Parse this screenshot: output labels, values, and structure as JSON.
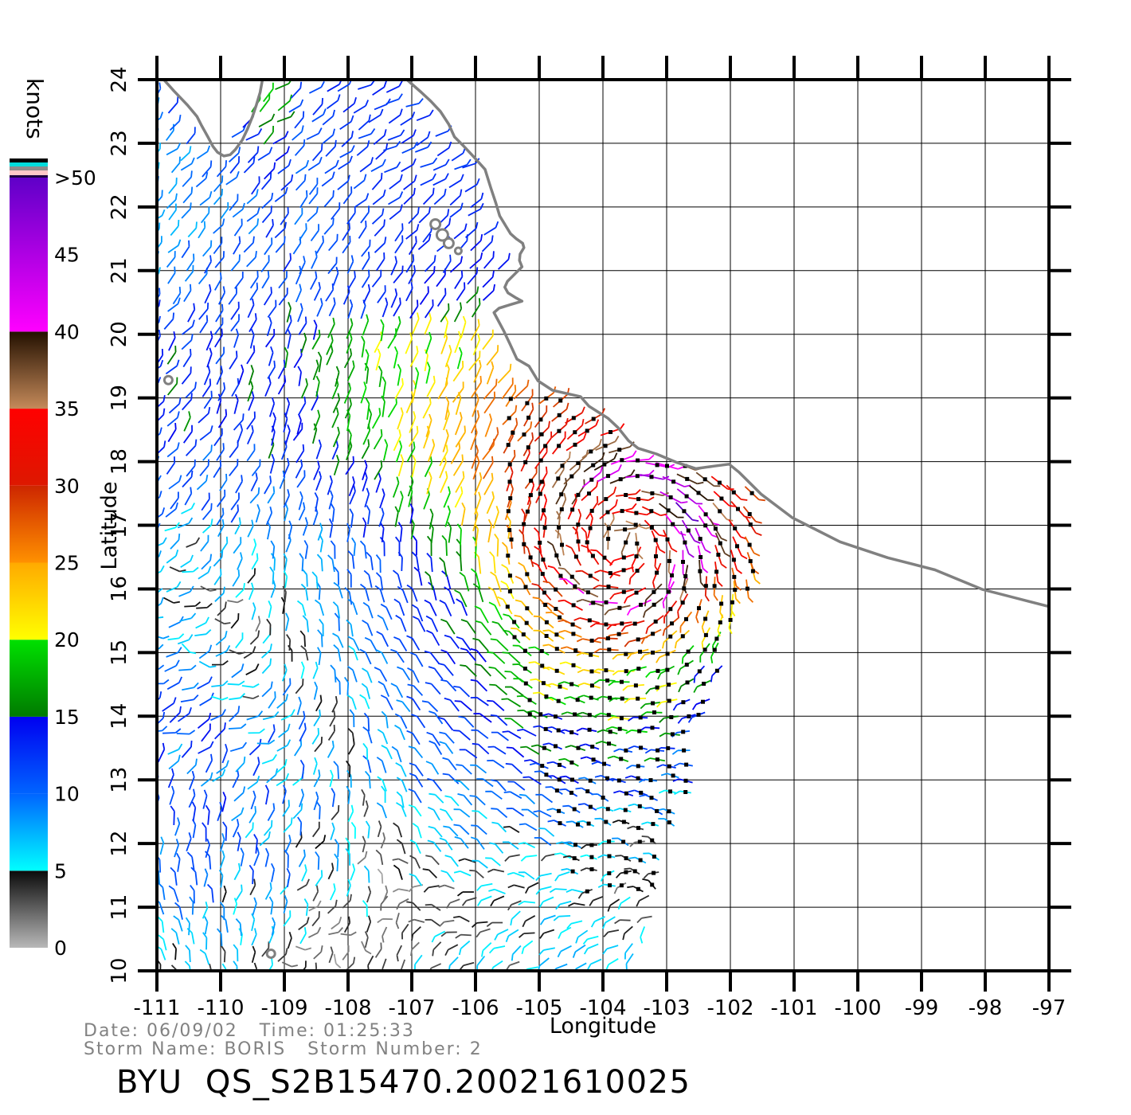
{
  "footer": {
    "date_time_line": "Date: 06/09/02   Time: 01:25:33",
    "storm_line": "Storm Name: BORIS   Storm Number: 2",
    "title_line": "BYU  QS_S2B15470.20021610025"
  },
  "storm": {
    "name": "BORIS",
    "number": "2",
    "date": "06/09/02",
    "time": "01:25:33",
    "product_id": "QS_S2B15470.20021610025",
    "source": "BYU"
  },
  "chart_data": {
    "type": "scatter",
    "subtype": "satellite-scatterometer-wind-vector-map",
    "description": "QuikSCAT ocean surface wind vectors off the Pacific coast of Mexico for tropical storm BORIS; vectors colored by wind speed in knots; black squares mark the storm-centered high-resolution swath cells",
    "xlabel": "Longitude",
    "ylabel": "Latitude",
    "xlim": [
      -111,
      -97
    ],
    "ylim": [
      10,
      24
    ],
    "grid": true,
    "xticks": [
      -111,
      -110,
      -109,
      -108,
      -107,
      -106,
      -105,
      -104,
      -103,
      -102,
      -101,
      -100,
      -99,
      -98,
      -97
    ],
    "yticks": [
      10,
      11,
      12,
      13,
      14,
      15,
      16,
      17,
      18,
      19,
      20,
      21,
      22,
      23,
      24
    ],
    "colorbar": {
      "label": "knots",
      "ticks": [
        {
          "value": 50,
          "label": ">50"
        },
        {
          "value": 45,
          "label": "45"
        },
        {
          "value": 40,
          "label": "40"
        },
        {
          "value": 35,
          "label": "35"
        },
        {
          "value": 30,
          "label": "30"
        },
        {
          "value": 25,
          "label": "25"
        },
        {
          "value": 20,
          "label": "20"
        },
        {
          "value": 15,
          "label": "15"
        },
        {
          "value": 10,
          "label": "10"
        },
        {
          "value": 5,
          "label": "5"
        },
        {
          "value": 0,
          "label": "0"
        }
      ],
      "segments": [
        {
          "from": 0,
          "to": 5,
          "color_low": "#b8b8b8",
          "color_high": "#0a0a0a"
        },
        {
          "from": 5,
          "to": 10,
          "color_low": "#00ffff",
          "color_high": "#0064ff"
        },
        {
          "from": 10,
          "to": 15,
          "color_low": "#0064ff",
          "color_high": "#0000f0"
        },
        {
          "from": 15,
          "to": 20,
          "color_low": "#007a00",
          "color_high": "#00e100"
        },
        {
          "from": 20,
          "to": 25,
          "color_low": "#ffff00",
          "color_high": "#ffaa00"
        },
        {
          "from": 25,
          "to": 30,
          "color_low": "#ff9100",
          "color_high": "#cd2600"
        },
        {
          "from": 30,
          "to": 35,
          "color_low": "#dd1800",
          "color_high": "#ff0000"
        },
        {
          "from": 35,
          "to": 40,
          "color_low": "#c58a5a",
          "color_high": "#231000"
        },
        {
          "from": 40,
          "to": 50,
          "color_low": "#ff00ff",
          "color_high": "#5f00c8"
        }
      ],
      "cap_stripes_bottom_to_top": [
        {
          "color": "#1c0040",
          "h": 3
        },
        {
          "color": "#ffc8c8",
          "h": 6
        },
        {
          "color": "#8c8c8c",
          "h": 5
        },
        {
          "color": "#00dcdc",
          "h": 5
        },
        {
          "color": "#000000",
          "h": 5
        }
      ]
    },
    "coastline": {
      "color": "#808080",
      "baja": [
        [
          -110.91,
          24.02
        ],
        [
          -110.73,
          23.82
        ],
        [
          -110.52,
          23.6
        ],
        [
          -110.37,
          23.42
        ],
        [
          -110.3,
          23.28
        ],
        [
          -110.2,
          23.1
        ],
        [
          -110.12,
          22.95
        ],
        [
          -110.05,
          22.86
        ],
        [
          -109.95,
          22.8
        ],
        [
          -109.85,
          22.82
        ],
        [
          -109.77,
          22.9
        ],
        [
          -109.66,
          23.05
        ],
        [
          -109.58,
          23.22
        ],
        [
          -109.5,
          23.42
        ],
        [
          -109.44,
          23.6
        ],
        [
          -109.38,
          23.8
        ],
        [
          -109.34,
          24.02
        ]
      ],
      "mainland": [
        [
          -107.1,
          24.02
        ],
        [
          -106.85,
          23.8
        ],
        [
          -106.7,
          23.66
        ],
        [
          -106.55,
          23.5
        ],
        [
          -106.42,
          23.3
        ],
        [
          -106.33,
          23.1
        ],
        [
          -106.18,
          22.95
        ],
        [
          -106.03,
          22.79
        ],
        [
          -105.85,
          22.59
        ],
        [
          -105.76,
          22.3
        ],
        [
          -105.68,
          22.06
        ],
        [
          -105.62,
          21.86
        ],
        [
          -105.53,
          21.71
        ],
        [
          -105.45,
          21.58
        ],
        [
          -105.36,
          21.5
        ],
        [
          -105.26,
          21.43
        ],
        [
          -105.24,
          21.36
        ],
        [
          -105.3,
          21.26
        ],
        [
          -105.31,
          21.16
        ],
        [
          -105.27,
          21.06
        ],
        [
          -105.38,
          20.95
        ],
        [
          -105.5,
          20.83
        ],
        [
          -105.54,
          20.74
        ],
        [
          -105.49,
          20.65
        ],
        [
          -105.36,
          20.57
        ],
        [
          -105.27,
          20.52
        ],
        [
          -105.44,
          20.47
        ],
        [
          -105.63,
          20.41
        ],
        [
          -105.71,
          20.34
        ],
        [
          -105.56,
          20.06
        ],
        [
          -105.46,
          19.85
        ],
        [
          -105.35,
          19.61
        ],
        [
          -105.16,
          19.5
        ],
        [
          -105.02,
          19.27
        ],
        [
          -104.79,
          19.12
        ],
        [
          -104.35,
          19.02
        ],
        [
          -104.22,
          18.87
        ],
        [
          -103.92,
          18.68
        ],
        [
          -103.76,
          18.53
        ],
        [
          -103.6,
          18.33
        ],
        [
          -103.45,
          18.21
        ],
        [
          -103.16,
          18.12
        ],
        [
          -102.85,
          17.99
        ],
        [
          -102.54,
          17.89
        ],
        [
          -102.25,
          17.93
        ],
        [
          -102.02,
          17.96
        ],
        [
          -101.86,
          17.83
        ],
        [
          -101.52,
          17.49
        ],
        [
          -101.03,
          17.12
        ],
        [
          -100.28,
          16.74
        ],
        [
          -99.53,
          16.49
        ],
        [
          -98.79,
          16.3
        ],
        [
          -98.04,
          15.99
        ],
        [
          -97.3,
          15.8
        ],
        [
          -96.6,
          15.62
        ]
      ],
      "islands": [
        {
          "lon": -106.63,
          "lat": 21.73,
          "r": 6
        },
        {
          "lon": -106.52,
          "lat": 21.56,
          "r": 7
        },
        {
          "lon": -106.42,
          "lat": 21.43,
          "r": 6
        },
        {
          "lon": -106.27,
          "lat": 21.31,
          "r": 4
        },
        {
          "lon": -110.82,
          "lat": 19.28,
          "r": 5
        },
        {
          "lon": -109.21,
          "lat": 10.27,
          "r": 5
        }
      ]
    },
    "coverage": {
      "coast_mask": [
        [
          24,
          -107.1
        ],
        [
          23.4,
          -106.45
        ],
        [
          22.6,
          -105.8
        ],
        [
          21.8,
          -105.6
        ],
        [
          21.3,
          -105.25
        ],
        [
          20.8,
          -105.4
        ],
        [
          20.3,
          -105.65
        ],
        [
          19.8,
          -105.42
        ],
        [
          19.3,
          -105.28
        ],
        [
          19.0,
          -104.6
        ],
        [
          18.7,
          -103.95
        ],
        [
          18.4,
          -103.6
        ],
        [
          18.1,
          -103.25
        ],
        [
          17.9,
          -102.35
        ],
        [
          17.6,
          -101.65
        ],
        [
          17.2,
          -101.15
        ],
        [
          16.8,
          -100.35
        ],
        [
          16.4,
          -99.45
        ],
        [
          16.0,
          -98.1
        ],
        [
          15.75,
          -97.0
        ],
        [
          15.55,
          -96.5
        ],
        [
          10.0,
          -96.5
        ]
      ],
      "swath_right_edge_lon_above_lat16": -101.55,
      "swath_right_edge_below_lat16": "-103.55 + 0.305*(lat-10)"
    },
    "wind_model": {
      "grid_spacing_deg": 0.25,
      "speed_units": "knots",
      "speed_range_shown": [
        0,
        51
      ],
      "vortex": {
        "storm_name": "BORIS",
        "center_lon": -103.7,
        "center_lat": 16.8,
        "vmax_knots": 40,
        "rmax_deg": 1.05,
        "decay_exponent": 0.85,
        "rotation": "counterclockwise",
        "inflow": 0.27
      },
      "background": {
        "mean_speed_knots": 10.5,
        "speed_variation_knots": 7
      },
      "storm_grid_dots": {
        "left_lon": -105.55,
        "top_lat": 19.15,
        "bottom_lat": 11.2,
        "dot": "black 5px squares"
      }
    }
  }
}
